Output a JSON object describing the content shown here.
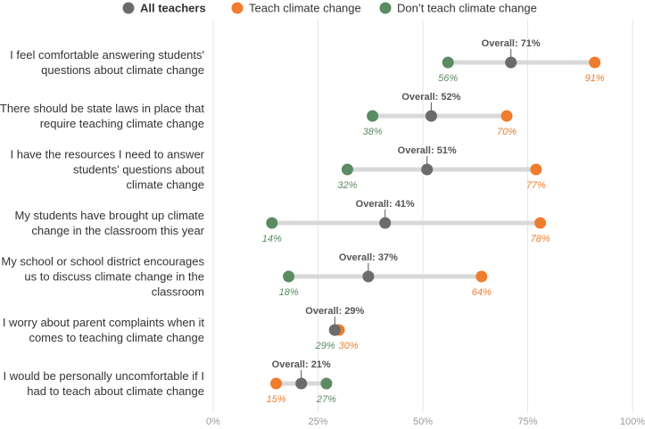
{
  "chart_data": {
    "type": "dot-plot",
    "legend": {
      "position": "top",
      "entries": [
        {
          "key": "all",
          "label": "All teachers",
          "color": "#6b6b6b"
        },
        {
          "key": "teach",
          "label": "Teach climate change",
          "color": "#ef7d2d"
        },
        {
          "key": "dont",
          "label": "Don’t teach climate change",
          "color": "#5a8b62"
        }
      ]
    },
    "xlim": [
      0,
      100
    ],
    "x_ticks": [
      0,
      25,
      50,
      75,
      100
    ],
    "x_tick_labels": [
      "0%",
      "25%",
      "50%",
      "75%",
      "100%"
    ],
    "grid": true,
    "overall_prefix": "Overall: ",
    "rows": [
      {
        "statement": [
          "I feel comfortable answering students'",
          "questions about climate change"
        ],
        "all": 71,
        "teach": 91,
        "dont": 56
      },
      {
        "statement": [
          "There should be state laws in place that",
          "require teaching climate change"
        ],
        "all": 52,
        "teach": 70,
        "dont": 38
      },
      {
        "statement": [
          "I have the resources I need to answer",
          "students' questions about",
          "climate change"
        ],
        "all": 51,
        "teach": 77,
        "dont": 32
      },
      {
        "statement": [
          "My students have brought up climate",
          "change in the classroom this year"
        ],
        "all": 41,
        "teach": 78,
        "dont": 14
      },
      {
        "statement": [
          "My school or school district encourages",
          "us to discuss climate change in the",
          "classroom"
        ],
        "all": 37,
        "teach": 64,
        "dont": 18
      },
      {
        "statement": [
          "I worry about parent complaints when it",
          "comes to teaching climate change"
        ],
        "all": 29,
        "teach": 30,
        "dont": 29
      },
      {
        "statement": [
          "I would be personally uncomfortable if I",
          "had to teach about climate change"
        ],
        "all": 21,
        "teach": 15,
        "dont": 27
      }
    ]
  }
}
